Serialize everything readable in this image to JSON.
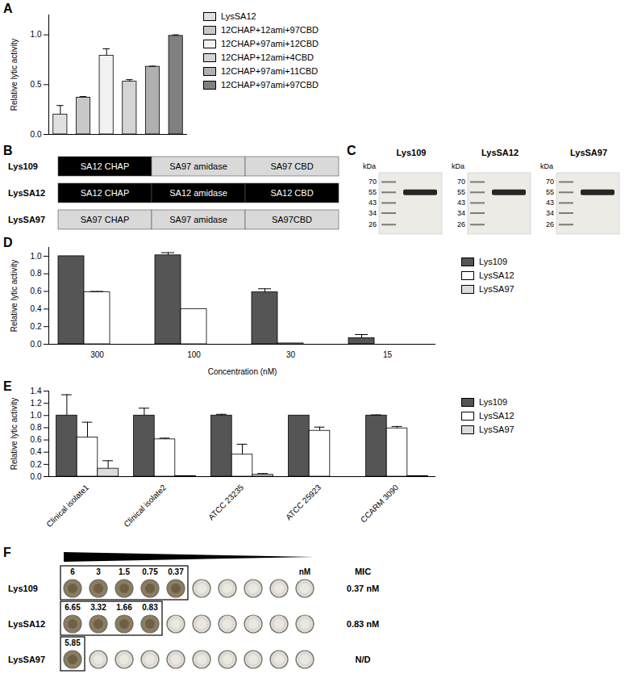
{
  "chart_data": [
    {
      "panel": "A",
      "type": "bar",
      "y_label": "Relative lytic activity",
      "categories": [
        "LysSA12",
        "12CHAP+12ami+97CBD",
        "12CHAP+97ami+12CBD",
        "12CHAP+12ami+4CBD",
        "12CHAP+97ami+11CBD",
        "12CHAP+97ami+97CBD"
      ],
      "values": [
        0.2,
        0.37,
        0.79,
        0.53,
        0.68,
        0.99
      ],
      "errors": [
        0.09,
        0.01,
        0.07,
        0.02,
        0.005,
        0.01
      ],
      "colors": [
        "#e0e0e0",
        "#c8c8c8",
        "#f2f2f2",
        "#d4d4d4",
        "#b0b0b0",
        "#808080"
      ],
      "ylim": [
        0,
        1.2
      ],
      "yticks": [
        {
          "value": 0,
          "label": "0.0"
        },
        0.5,
        {
          "value": 1,
          "label": "1.0"
        }
      ],
      "legend": "right",
      "tick_labels": "y"
    },
    {
      "panel": "D",
      "type": "bar",
      "x_label": "Concentration (nM)",
      "y_label": "Relative lytic activity",
      "categories": [
        "300",
        "100",
        "30",
        "15"
      ],
      "series": [
        {
          "name": "Lys109",
          "color": "#555555",
          "values": [
            1.0,
            1.01,
            0.59,
            0.07
          ],
          "errors": [
            0,
            0.03,
            0.04,
            0.04
          ]
        },
        {
          "name": "LysSA12",
          "color": "#ffffff",
          "values": [
            0.59,
            0.4,
            0.01,
            0
          ],
          "errors": [
            0.01,
            0,
            0,
            0
          ]
        },
        {
          "name": "LysSA97",
          "color": "#dcdcdc",
          "values": [
            0,
            0,
            0,
            0
          ],
          "errors": [
            0,
            0,
            0,
            0
          ]
        }
      ],
      "ylim": [
        0,
        1.1
      ],
      "yticks": [
        {
          "value": 0,
          "label": "0.0"
        },
        0.2,
        0.4,
        0.6,
        0.8,
        {
          "value": 1,
          "label": "1.0"
        }
      ],
      "legend": "right"
    },
    {
      "panel": "E",
      "type": "bar",
      "y_label": "Relative lytic activity",
      "categories": [
        "Clinical isolate1",
        "Clinical isolate2",
        "ATCC 23235",
        "ATCC 25923",
        "CCARM 3090"
      ],
      "series": [
        {
          "name": "Lys109",
          "color": "#555555",
          "values": [
            1.0,
            1.0,
            1.0,
            1.0,
            1.0
          ],
          "errors": [
            0.34,
            0.12,
            0.02,
            0,
            0.01
          ]
        },
        {
          "name": "LysSA12",
          "color": "#ffffff",
          "values": [
            0.64,
            0.61,
            0.36,
            0.75,
            0.79
          ],
          "errors": [
            0.25,
            0.02,
            0.17,
            0.06,
            0.03
          ]
        },
        {
          "name": "LysSA97",
          "color": "#dcdcdc",
          "values": [
            0.13,
            0.01,
            0.03,
            0,
            0.01
          ],
          "errors": [
            0.13,
            0,
            0.02,
            0,
            0
          ]
        }
      ],
      "ylim": [
        0,
        1.4
      ],
      "yticks": [
        {
          "value": 0,
          "label": "0.0"
        },
        0.2,
        0.4,
        0.6,
        0.8,
        {
          "value": 1,
          "label": "1.0"
        },
        1.2,
        1.4
      ],
      "legend": "right"
    }
  ],
  "diagram": {
    "panel": "B",
    "rows": [
      {
        "name": "Lys109",
        "domains": [
          {
            "label": "SA12 CHAP",
            "color": "#000000"
          },
          {
            "label": "SA97 amidase",
            "color": "#d9d9d9"
          },
          {
            "label": "SA97 CBD",
            "color": "#d9d9d9"
          }
        ]
      },
      {
        "name": "LysSA12",
        "domains": [
          {
            "label": "SA12 CHAP",
            "color": "#000000"
          },
          {
            "label": "SA12 amidase",
            "color": "#000000"
          },
          {
            "label": "SA12 CBD",
            "color": "#000000"
          }
        ]
      },
      {
        "name": "LysSA97",
        "domains": [
          {
            "label": "SA97 CHAP",
            "color": "#d9d9d9"
          },
          {
            "label": "SA97 amidase",
            "color": "#d9d9d9"
          },
          {
            "label": "SA97CBD",
            "color": "#d9d9d9"
          }
        ]
      }
    ]
  },
  "gel": {
    "panel": "C",
    "unit": "kDa",
    "lanes": [
      {
        "name": "Lys109",
        "markers": [
          70,
          55,
          43,
          34,
          26
        ],
        "band": 55
      },
      {
        "name": "LysSA12",
        "markers": [
          70,
          55,
          43,
          34,
          26
        ],
        "band": 55
      },
      {
        "name": "LysSA97",
        "markers": [
          70,
          55,
          43,
          34,
          26
        ],
        "band": 55
      }
    ]
  },
  "plate": {
    "panel": "F",
    "unit": "nM",
    "header": "MIC",
    "wells": 10,
    "rows": [
      {
        "name": "Lys109",
        "concentrations": [
          6,
          3,
          1.5,
          0.75,
          0.37
        ],
        "mic": "0.37 nM"
      },
      {
        "name": "LysSA12",
        "concentrations": [
          6.65,
          3.32,
          1.66,
          0.83
        ],
        "mic": "0.83 nM"
      },
      {
        "name": "LysSA97",
        "concentrations": [
          5.85
        ],
        "mic": "N/D"
      }
    ]
  }
}
